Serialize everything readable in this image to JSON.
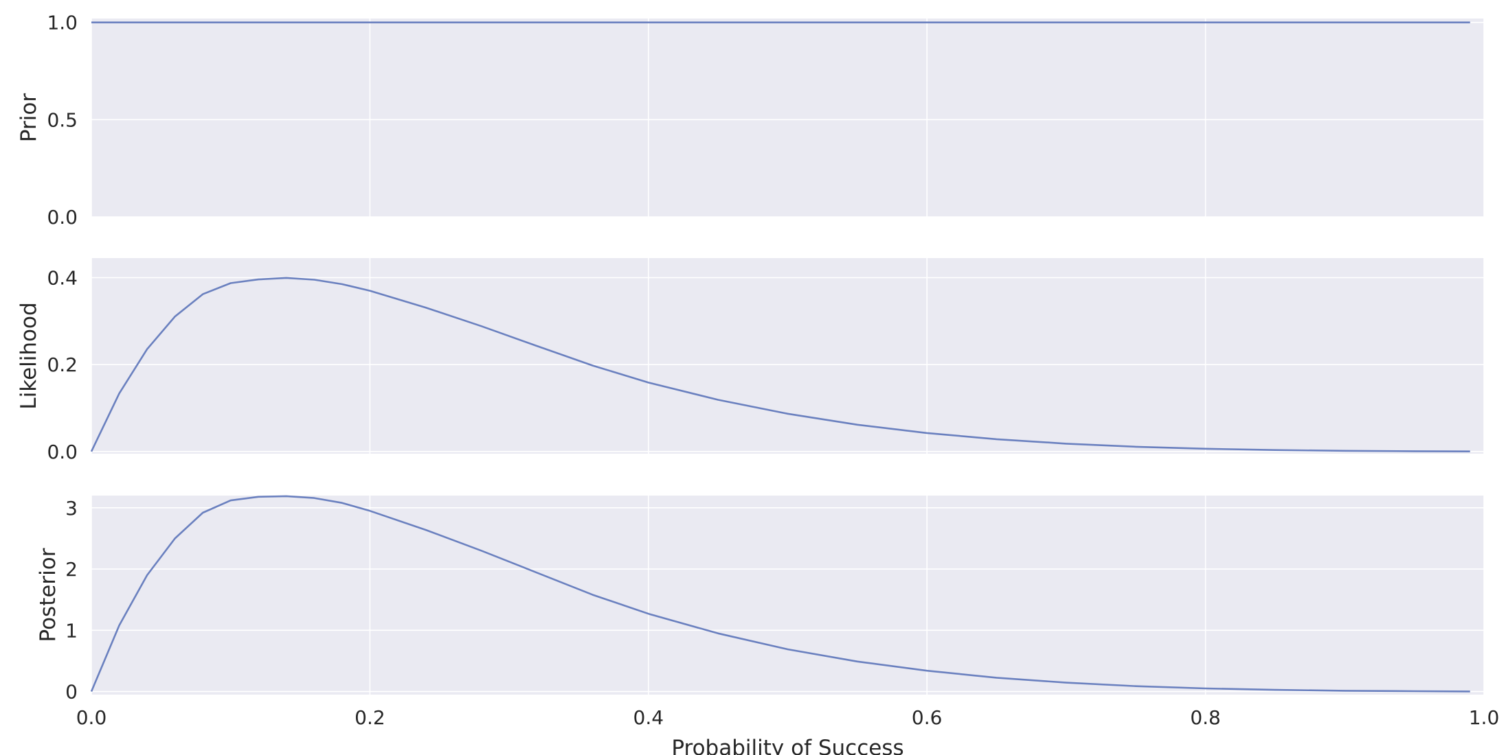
{
  "chart_data": [
    {
      "type": "line",
      "ylabel": "Prior",
      "xlim": [
        0.0,
        1.0
      ],
      "ylim": [
        0.0,
        1.02
      ],
      "x_ticks": [
        "0.0",
        "0.2",
        "0.4",
        "0.6",
        "0.8",
        "1.0"
      ],
      "y_ticks": [
        {
          "value": 0.0,
          "label": "0.0"
        },
        {
          "value": 0.5,
          "label": "0.5"
        },
        {
          "value": 1.0,
          "label": "1.0"
        }
      ],
      "grid": true,
      "series": [
        {
          "x": [
            0.0,
            0.1,
            0.2,
            0.3,
            0.4,
            0.5,
            0.6,
            0.7,
            0.8,
            0.9,
            0.99
          ],
          "y": [
            1.0,
            1.0,
            1.0,
            1.0,
            1.0,
            1.0,
            1.0,
            1.0,
            1.0,
            1.0,
            1.0
          ]
        }
      ]
    },
    {
      "type": "line",
      "ylabel": "Likelihood",
      "xlim": [
        0.0,
        1.0
      ],
      "ylim": [
        -0.005,
        0.445
      ],
      "x_ticks": [
        "0.0",
        "0.2",
        "0.4",
        "0.6",
        "0.8",
        "1.0"
      ],
      "y_ticks": [
        {
          "value": 0.0,
          "label": "0.0"
        },
        {
          "value": 0.2,
          "label": "0.2"
        },
        {
          "value": 0.4,
          "label": "0.4"
        }
      ],
      "grid": true,
      "series": [
        {
          "x": [
            0.0,
            0.02,
            0.04,
            0.06,
            0.08,
            0.1,
            0.12,
            0.14,
            0.16,
            0.18,
            0.2,
            0.24,
            0.28,
            0.32,
            0.36,
            0.4,
            0.45,
            0.5,
            0.55,
            0.6,
            0.65,
            0.7,
            0.75,
            0.8,
            0.85,
            0.9,
            0.95,
            0.99
          ],
          "y": [
            0.0,
            0.1334,
            0.2355,
            0.3104,
            0.3619,
            0.3874,
            0.3959,
            0.3993,
            0.3953,
            0.385,
            0.3698,
            0.3312,
            0.2884,
            0.2427,
            0.1977,
            0.1586,
            0.1189,
            0.0869,
            0.0617,
            0.0425,
            0.0283,
            0.0181,
            0.011,
            0.0064,
            0.0034,
            0.0017,
            0.0007,
            0.0002
          ]
        }
      ]
    },
    {
      "type": "line",
      "ylabel": "Posterior",
      "xlim": [
        0.0,
        1.0
      ],
      "ylim": [
        -0.05,
        3.2
      ],
      "x_ticks": [
        "0.0",
        "0.2",
        "0.4",
        "0.6",
        "0.8",
        "1.0"
      ],
      "y_ticks": [
        {
          "value": 0,
          "label": "0"
        },
        {
          "value": 1,
          "label": "1"
        },
        {
          "value": 2,
          "label": "2"
        },
        {
          "value": 3,
          "label": "3"
        }
      ],
      "xlabel": "Probability of Success",
      "grid": true,
      "series": [
        {
          "x": [
            0.0,
            0.02,
            0.04,
            0.06,
            0.08,
            0.1,
            0.12,
            0.14,
            0.16,
            0.18,
            0.2,
            0.24,
            0.28,
            0.32,
            0.36,
            0.4,
            0.45,
            0.5,
            0.55,
            0.6,
            0.65,
            0.7,
            0.75,
            0.8,
            0.85,
            0.9,
            0.95,
            0.99
          ],
          "y": [
            0.0,
            1.08,
            1.9,
            2.5,
            2.92,
            3.12,
            3.18,
            3.19,
            3.16,
            3.08,
            2.95,
            2.64,
            2.3,
            1.94,
            1.58,
            1.27,
            0.95,
            0.69,
            0.49,
            0.34,
            0.226,
            0.145,
            0.088,
            0.051,
            0.027,
            0.013,
            0.006,
            0.002
          ]
        }
      ]
    }
  ]
}
